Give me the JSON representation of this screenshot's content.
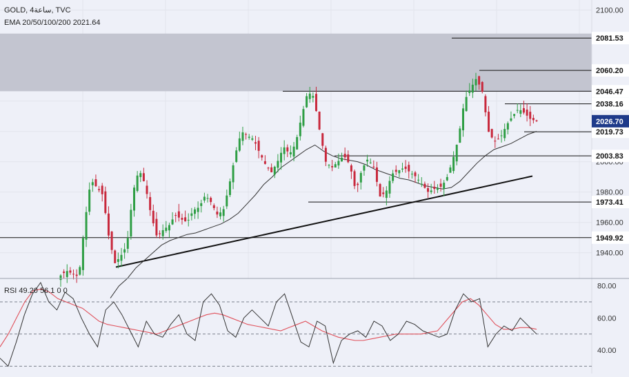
{
  "header": {
    "symbol_line": "GOLD, 4ساعة, TVC",
    "ema_line": "EMA 20/50/100/200  2021.64"
  },
  "rsi": {
    "label": "RSI  49.20  56.1  0  0",
    "ticks": [
      "80.00",
      "60.00",
      "40.00"
    ]
  },
  "colors": {
    "background": "#eef0f8",
    "up_candle": "#2e9e44",
    "down_candle": "#c8283c",
    "resistance_zone": "#c3c5d0",
    "rsi_line": "#333333",
    "rsi_ma": "#e0505a",
    "current_tag": "#1e3a8a"
  },
  "chart_data": {
    "type": "candlestick",
    "title": "GOLD, 4ساعة, TVC",
    "y_ticks": [
      "2100.00",
      "2000.00",
      "1980.00",
      "1960.00",
      "1940.00"
    ],
    "ylim": [
      1923,
      2103
    ],
    "resistance_zone": [
      2046.47,
      2084.5
    ],
    "levels": [
      {
        "price": 2081.53,
        "label": "2081.53"
      },
      {
        "price": 2060.2,
        "label": "2060.20"
      },
      {
        "price": 2046.47,
        "label": "2046.47"
      },
      {
        "price": 2038.16,
        "label": "2038.16"
      },
      {
        "price": 2019.73,
        "label": "2019.73"
      },
      {
        "price": 2003.83,
        "label": "2003.83"
      },
      {
        "price": 1973.41,
        "label": "1973.41"
      },
      {
        "price": 1949.92,
        "label": "1949.92"
      }
    ],
    "current_price": {
      "price": 2026.7,
      "label": "2026.70"
    },
    "trendline": {
      "from": 1930.5,
      "to": 1990.5
    },
    "price_path": [
      1925,
      1928,
      1926,
      1924,
      1960,
      1988,
      1983,
      1978,
      1950,
      1933,
      1938,
      1945,
      1980,
      1995,
      1985,
      1965,
      1950,
      1955,
      1958,
      1965,
      1962,
      1960,
      1968,
      1970,
      1978,
      1973,
      1965,
      1968,
      1985,
      2005,
      2020,
      2017,
      2015,
      2006,
      1998,
      1993,
      2000,
      2010,
      2005,
      2012,
      2030,
      2046,
      2043,
      2020,
      2000,
      1996,
      2000,
      2004,
      1998,
      1980,
      1995,
      2002,
      1996,
      1977,
      1980,
      1992,
      1994,
      1996,
      1993,
      1990,
      1985,
      1980,
      1982,
      1983,
      1988,
      2000,
      2015,
      2040,
      2048,
      2055,
      2046,
      2020,
      2013,
      2016,
      2024,
      2030,
      2035,
      2032,
      2028,
      2026.7
    ],
    "ema_path": [
      1910,
      1918,
      1923,
      1930,
      1935,
      1940,
      1945,
      1948,
      1950,
      1952,
      1953,
      1955,
      1957,
      1959,
      1962,
      1966,
      1972,
      1978,
      1985,
      1990,
      1996,
      2000,
      2004,
      2008,
      2011,
      2007,
      2004,
      2002,
      2001,
      2000,
      1998,
      1995,
      1993,
      1991,
      1989,
      1988,
      1986,
      1984,
      1983,
      1982,
      1983,
      1987,
      1993,
      1999,
      2004,
      2008,
      2010,
      2012,
      2015,
      2018,
      2020
    ],
    "rsi_ticks": [
      80,
      60,
      40
    ],
    "rsi_ylim": [
      28,
      82
    ],
    "rsi_bands": [
      70,
      50,
      30
    ],
    "rsi_path": [
      35,
      30,
      45,
      62,
      75,
      82,
      70,
      65,
      76,
      72,
      60,
      50,
      42,
      65,
      70,
      62,
      52,
      42,
      58,
      50,
      48,
      56,
      62,
      50,
      46,
      70,
      75,
      68,
      52,
      48,
      60,
      65,
      60,
      55,
      70,
      75,
      60,
      45,
      42,
      58,
      55,
      32,
      46,
      50,
      52,
      48,
      58,
      55,
      46,
      50,
      58,
      56,
      52,
      50,
      48,
      50,
      65,
      75,
      70,
      72,
      42,
      50,
      55,
      52,
      60,
      55,
      50
    ],
    "rsi_ma_path": [
      42,
      50,
      60,
      70,
      77,
      78,
      76,
      72,
      70,
      68,
      66,
      62,
      58,
      56,
      55,
      54,
      53,
      52,
      51,
      50,
      52,
      54,
      56,
      58,
      60,
      62,
      63,
      62,
      60,
      58,
      56,
      55,
      54,
      53,
      52,
      54,
      56,
      58,
      55,
      52,
      50,
      48,
      47,
      46,
      46,
      47,
      48,
      49,
      50,
      50,
      50,
      50,
      51,
      52,
      58,
      64,
      70,
      72,
      68,
      62,
      56,
      53,
      53,
      54,
      54,
      53
    ]
  }
}
